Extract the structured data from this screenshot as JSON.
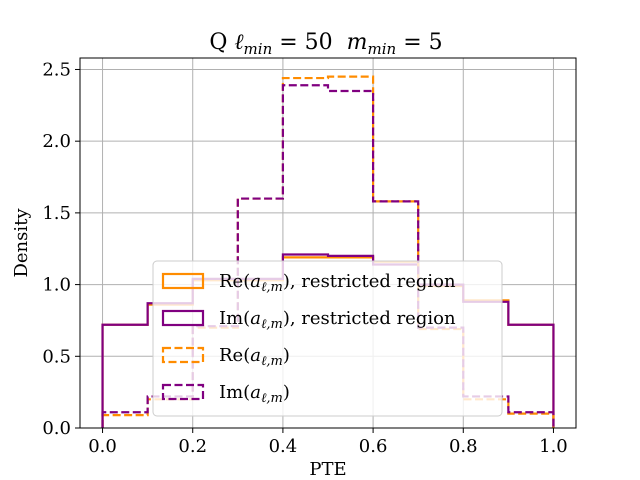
{
  "chart_data": {
    "type": "histogram",
    "title": "Q ℓmin = 50  mmin = 5",
    "title_parts": {
      "prefix": "Q ",
      "ell_sym": "ℓ",
      "ell_sub": "min",
      "ell_val": " = 50",
      "m_sym": "m",
      "m_sub": "min",
      "m_val": " = 5"
    },
    "xlabel": "PTE",
    "ylabel": "Density",
    "xlim": [
      -0.05,
      1.05
    ],
    "ylim": [
      0.0,
      2.58
    ],
    "x_ticks": [
      0.0,
      0.2,
      0.4,
      0.6,
      0.8,
      1.0
    ],
    "x_tick_labels": [
      "0.0",
      "0.2",
      "0.4",
      "0.6",
      "0.8",
      "1.0"
    ],
    "y_ticks": [
      0.0,
      0.5,
      1.0,
      1.5,
      2.0,
      2.5
    ],
    "y_tick_labels": [
      "0.0",
      "0.5",
      "1.0",
      "1.5",
      "2.0",
      "2.5"
    ],
    "grid": true,
    "legend_placement": "lower-center",
    "bin_edges": [
      0.0,
      0.1,
      0.2,
      0.3,
      0.4,
      0.5,
      0.6,
      0.7,
      0.8,
      0.9,
      1.0
    ],
    "series": [
      {
        "name": "Re(aℓ,m), restricted region",
        "label_main": "Re(",
        "label_tail": "), restricted region",
        "color": "#ff8c00",
        "linestyle": "solid",
        "values": [
          0.72,
          0.86,
          1.03,
          1.03,
          1.19,
          1.19,
          1.16,
          0.99,
          0.89,
          0.72
        ]
      },
      {
        "name": "Im(aℓ,m), restricted region",
        "label_main": "Im(",
        "label_tail": "), restricted region",
        "color": "#800080",
        "linestyle": "solid",
        "values": [
          0.72,
          0.87,
          1.04,
          1.04,
          1.21,
          1.2,
          1.14,
          1.0,
          0.88,
          0.72
        ]
      },
      {
        "name": "Re(aℓ,m)",
        "label_main": "Re(",
        "label_tail": ")",
        "color": "#ff8c00",
        "linestyle": "dashed",
        "values": [
          0.09,
          0.2,
          0.7,
          1.6,
          2.44,
          2.45,
          1.58,
          0.69,
          0.2,
          0.1
        ]
      },
      {
        "name": "Im(aℓ,m)",
        "label_main": "Im(",
        "label_tail": ")",
        "color": "#800080",
        "linestyle": "dashed",
        "values": [
          0.11,
          0.22,
          0.71,
          1.6,
          2.39,
          2.35,
          1.58,
          0.7,
          0.22,
          0.11
        ]
      }
    ],
    "legend_math": {
      "a": "a",
      "sub": "ℓ,m"
    }
  }
}
